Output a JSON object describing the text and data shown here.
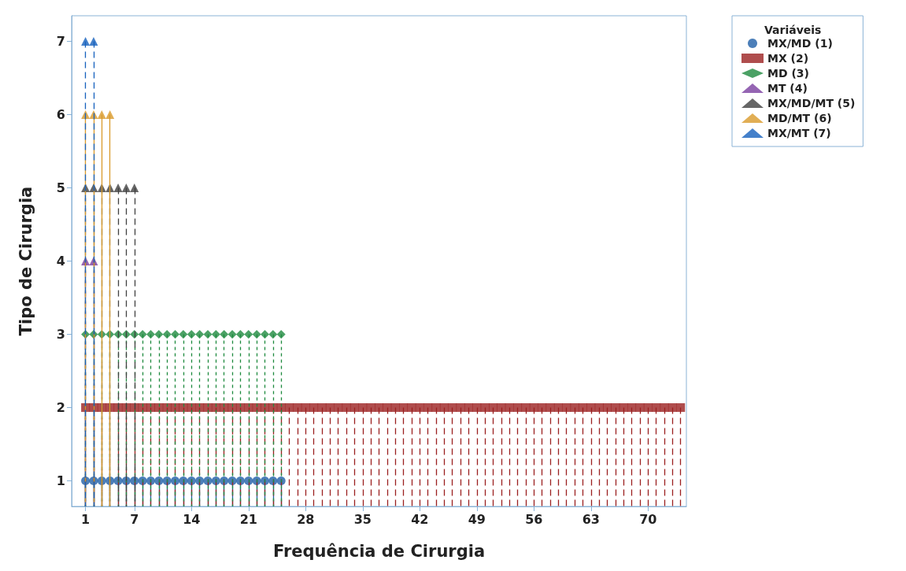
{
  "chart_data": {
    "type": "lollipop",
    "xlabel": "Frequência de Cirurgia",
    "ylabel": "Tipo de Cirurgia",
    "legend_title": "Variáveis",
    "legend": "top right",
    "grid": false,
    "xlim": [
      -0.7,
      74.7
    ],
    "xticks": [
      1,
      7,
      14,
      21,
      28,
      35,
      42,
      49,
      56,
      63,
      70
    ],
    "ylim": [
      0.65,
      7.35
    ],
    "yticks": [
      1,
      2,
      3,
      4,
      5,
      6,
      7
    ],
    "series": [
      {
        "name": "MX/MD (1)",
        "color": "#1f5fa8",
        "marker": "circle",
        "line_style": "solid",
        "x": [
          1,
          2,
          3,
          4,
          5,
          6,
          7,
          8,
          9,
          10,
          11,
          12,
          13,
          14,
          15,
          16,
          17,
          18,
          19,
          20,
          21,
          22,
          23,
          24,
          25
        ],
        "values": [
          1,
          1,
          1,
          1,
          1,
          1,
          1,
          1,
          1,
          1,
          1,
          1,
          1,
          1,
          1,
          1,
          1,
          1,
          1,
          1,
          1,
          1,
          1,
          1,
          1
        ]
      },
      {
        "name": "MX (2)",
        "color": "#9b2020",
        "marker": "square",
        "line_style": "dashed",
        "x": [
          1,
          2,
          3,
          4,
          5,
          6,
          7,
          8,
          9,
          10,
          11,
          12,
          13,
          14,
          15,
          16,
          17,
          18,
          19,
          20,
          21,
          22,
          23,
          24,
          25,
          26,
          27,
          28,
          29,
          30,
          31,
          32,
          33,
          34,
          35,
          36,
          37,
          38,
          39,
          40,
          41,
          42,
          43,
          44,
          45,
          46,
          47,
          48,
          49,
          50,
          51,
          52,
          53,
          54,
          55,
          56,
          57,
          58,
          59,
          60,
          61,
          62,
          63,
          64,
          65,
          66,
          67,
          68,
          69,
          70,
          71,
          72,
          73,
          74
        ],
        "values": [
          2,
          2,
          2,
          2,
          2,
          2,
          2,
          2,
          2,
          2,
          2,
          2,
          2,
          2,
          2,
          2,
          2,
          2,
          2,
          2,
          2,
          2,
          2,
          2,
          2,
          2,
          2,
          2,
          2,
          2,
          2,
          2,
          2,
          2,
          2,
          2,
          2,
          2,
          2,
          2,
          2,
          2,
          2,
          2,
          2,
          2,
          2,
          2,
          2,
          2,
          2,
          2,
          2,
          2,
          2,
          2,
          2,
          2,
          2,
          2,
          2,
          2,
          2,
          2,
          2,
          2,
          2,
          2,
          2,
          2,
          2,
          2,
          2,
          2
        ]
      },
      {
        "name": "MD (3)",
        "color": "#1e8a3e",
        "marker": "diamond",
        "line_style": "dotted",
        "x": [
          1,
          2,
          3,
          4,
          5,
          6,
          7,
          8,
          9,
          10,
          11,
          12,
          13,
          14,
          15,
          16,
          17,
          18,
          19,
          20,
          21,
          22,
          23,
          24,
          25
        ],
        "values": [
          3,
          3,
          3,
          3,
          3,
          3,
          3,
          3,
          3,
          3,
          3,
          3,
          3,
          3,
          3,
          3,
          3,
          3,
          3,
          3,
          3,
          3,
          3,
          3,
          3
        ]
      },
      {
        "name": "MT (4)",
        "color": "#7b3fa0",
        "marker": "triangle",
        "line_style": "dashed",
        "x": [
          1,
          2
        ],
        "values": [
          4,
          4
        ]
      },
      {
        "name": "MX/MD/MT (5)",
        "color": "#404040",
        "marker": "triangle",
        "line_style": "dashed",
        "x": [
          1,
          2,
          3,
          4,
          5,
          6,
          7
        ],
        "values": [
          5,
          5,
          5,
          5,
          5,
          5,
          5
        ]
      },
      {
        "name": "MD/MT (6)",
        "color": "#d99a2b",
        "marker": "triangle",
        "line_style": "solid",
        "x": [
          1,
          2,
          3,
          4
        ],
        "values": [
          6,
          6,
          6,
          6
        ]
      },
      {
        "name": "MX/MT (7)",
        "color": "#1560bd",
        "marker": "triangle",
        "line_style": "dashed",
        "x": [
          1,
          2
        ],
        "values": [
          7,
          7
        ]
      }
    ]
  }
}
